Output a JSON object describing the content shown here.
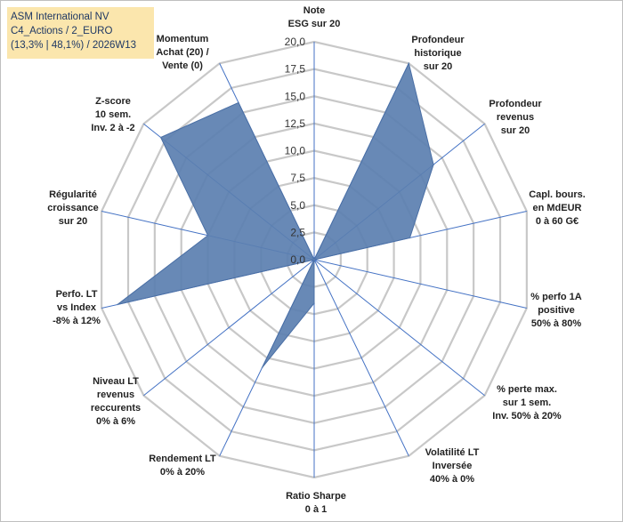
{
  "title": {
    "line1": "ASM International NV",
    "line2": "C4_Actions / 2_EURO",
    "line3": "(13,3% | 48,1%) / 2026W13"
  },
  "chart_data": {
    "type": "radar",
    "title": "ASM International NV",
    "range": [
      0,
      20
    ],
    "ticks": [
      "0,0",
      "2,5",
      "5,0",
      "7,5",
      "10,0",
      "12,5",
      "15,0",
      "17,5",
      "20,0"
    ],
    "categories": [
      [
        "Note",
        "ESG sur 20"
      ],
      [
        "Profondeur",
        "historique",
        "sur 20"
      ],
      [
        "Profondeur",
        "revenus",
        "sur 20"
      ],
      [
        "Capl. bours.",
        "en MdEUR",
        "0 à 60 G€"
      ],
      [
        "% perfo 1A",
        "positive",
        "50% à 80%"
      ],
      [
        "% perte max.",
        "sur 1 sem.",
        "Inv. 50% à 20%"
      ],
      [
        "Volatilité LT",
        "Inversée",
        "40% à 0%"
      ],
      [
        "Ratio Sharpe",
        "0 à 1"
      ],
      [
        "Rendement LT",
        "0% à 20%"
      ],
      [
        "Niveau LT",
        "revenus",
        "reccurents",
        "0% à 6%"
      ],
      [
        "Perfo. LT",
        "vs Index",
        "-8% à 12%"
      ],
      [
        "Régularité",
        "croissance",
        "sur 20"
      ],
      [
        "Z-score",
        "10 sem.",
        "Inv. 2 à -2"
      ],
      [
        "Momentum",
        "Achat (20) /",
        "Vente (0)"
      ]
    ],
    "series": [
      {
        "name": "ASM International NV",
        "values": [
          0,
          20,
          14,
          9,
          0,
          0,
          0,
          4,
          11,
          0,
          18.5,
          10,
          18,
          16
        ],
        "color": "#5b7fb0"
      }
    ]
  },
  "colors": {
    "grid": "#c8c8c8",
    "spoke": "#4472c4",
    "fill": "#5b7fb0",
    "title_bg": "#fbe6ad",
    "title_text": "#1f3864"
  }
}
